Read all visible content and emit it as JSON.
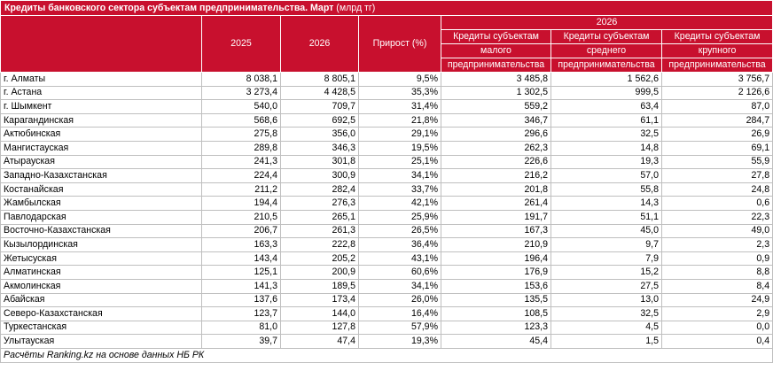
{
  "title": "Кредиты банковского сектора субъектам предпринимательства. Март",
  "unit": "(млрд тг)",
  "headers": {
    "y2025": "2025",
    "y2026": "2026",
    "growth": "Прирост (%)",
    "group_year": "2026",
    "small": [
      "Кредиты субъектам",
      "малого",
      "предпринимательства"
    ],
    "medium": [
      "Кредиты субъектам",
      "среднего",
      "предпринимательства"
    ],
    "large": [
      "Кредиты субъектам",
      "крупного",
      "предпринимательства"
    ]
  },
  "rows": [
    [
      "г. Алматы",
      "8 038,1",
      "8 805,1",
      "9,5%",
      "3 485,8",
      "1 562,6",
      "3 756,7"
    ],
    [
      "г. Астана",
      "3 273,4",
      "4 428,5",
      "35,3%",
      "1 302,5",
      "999,5",
      "2 126,6"
    ],
    [
      "г. Шымкент",
      "540,0",
      "709,7",
      "31,4%",
      "559,2",
      "63,4",
      "87,0"
    ],
    [
      "Карагандинская",
      "568,6",
      "692,5",
      "21,8%",
      "346,7",
      "61,1",
      "284,7"
    ],
    [
      "Актюбинская",
      "275,8",
      "356,0",
      "29,1%",
      "296,6",
      "32,5",
      "26,9"
    ],
    [
      "Мангистауская",
      "289,8",
      "346,3",
      "19,5%",
      "262,3",
      "14,8",
      "69,1"
    ],
    [
      "Атырауская",
      "241,3",
      "301,8",
      "25,1%",
      "226,6",
      "19,3",
      "55,9"
    ],
    [
      "Западно-Казахстанская",
      "224,4",
      "300,9",
      "34,1%",
      "216,2",
      "57,0",
      "27,8"
    ],
    [
      "Костанайская",
      "211,2",
      "282,4",
      "33,7%",
      "201,8",
      "55,8",
      "24,8"
    ],
    [
      "Жамбылская",
      "194,4",
      "276,3",
      "42,1%",
      "261,4",
      "14,3",
      "0,6"
    ],
    [
      "Павлодарская",
      "210,5",
      "265,1",
      "25,9%",
      "191,7",
      "51,1",
      "22,3"
    ],
    [
      "Восточно-Казахстанская",
      "206,7",
      "261,3",
      "26,5%",
      "167,3",
      "45,0",
      "49,0"
    ],
    [
      "Кызылординская",
      "163,3",
      "222,8",
      "36,4%",
      "210,9",
      "9,7",
      "2,3"
    ],
    [
      "Жетысуская",
      "143,4",
      "205,2",
      "43,1%",
      "196,4",
      "7,9",
      "0,9"
    ],
    [
      "Алматинская",
      "125,1",
      "200,9",
      "60,6%",
      "176,9",
      "15,2",
      "8,8"
    ],
    [
      "Акмолинская",
      "141,3",
      "189,5",
      "34,1%",
      "153,6",
      "27,5",
      "8,4"
    ],
    [
      "Абайская",
      "137,6",
      "173,4",
      "26,0%",
      "135,5",
      "13,0",
      "24,9"
    ],
    [
      "Северо-Казахстанская",
      "123,7",
      "144,0",
      "16,4%",
      "108,5",
      "32,5",
      "2,9"
    ],
    [
      "Туркестанская",
      "81,0",
      "127,8",
      "57,9%",
      "123,3",
      "4,5",
      "0,0"
    ],
    [
      "Улытауская",
      "39,7",
      "47,4",
      "19,3%",
      "45,4",
      "1,5",
      "0,4"
    ]
  ],
  "footer": "Расчёты Ranking.kz на основе данных НБ РК"
}
